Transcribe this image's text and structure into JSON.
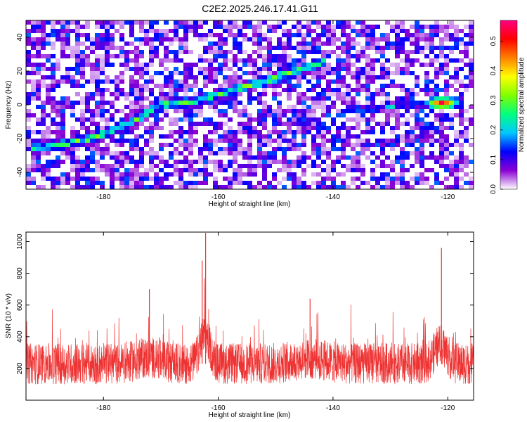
{
  "figure_title": "C2E2.2025.246.17.41.G11",
  "chart_data": [
    {
      "type": "heatmap",
      "xlabel": "Height of straight line (km)",
      "ylabel": "Frequency (Hz)",
      "xlim": [
        -193.5,
        -115.5
      ],
      "ylim": [
        -50,
        50
      ],
      "x_ticks": [
        -180,
        -160,
        -140,
        -120
      ],
      "y_ticks": [
        40,
        20,
        0,
        -20,
        -40
      ],
      "colorbar": {
        "label": "Normalized spectral amplitude",
        "range": [
          0,
          0.57
        ],
        "ticks": [
          "0.0",
          "0.1",
          "0.2",
          "0.3",
          "0.4",
          "0.5"
        ],
        "colormap": [
          "#ffffff",
          "#8a00d4",
          "#0000ff",
          "#00c8ff",
          "#00ff80",
          "#7fff00",
          "#ffff00",
          "#ff8000",
          "#ff0000",
          "#ff0080"
        ]
      },
      "features": [
        {
          "name": "linear chirp",
          "x": [
            -193,
            -188,
            -182,
            -176,
            -170,
            -164,
            -158,
            -152,
            -146,
            -141
          ],
          "y": [
            -26,
            -24,
            -20,
            -12,
            0,
            2,
            8,
            14,
            20,
            26
          ]
        },
        {
          "name": "steady tone",
          "x": [
            -138,
            -132,
            -126,
            -121,
            -117
          ],
          "y": [
            -3,
            -2,
            0,
            1,
            0
          ]
        },
        {
          "name": "peak",
          "x": -121,
          "y": 1,
          "amplitude": 0.57
        }
      ]
    },
    {
      "type": "line",
      "xlabel": "Height of straight line (km)",
      "ylabel": "SNR (10 * v/v)",
      "xlim": [
        -193.5,
        -115.5
      ],
      "ylim": [
        0,
        1060
      ],
      "x_ticks": [
        -180,
        -160,
        -140,
        -120
      ],
      "y_ticks": [
        200,
        400,
        600,
        800,
        1000
      ],
      "line_color": "#ee3333",
      "baseline_level": 230,
      "spikes": [
        {
          "x": -162.2,
          "value": 1055
        },
        {
          "x": -162.8,
          "value": 880
        },
        {
          "x": -121.1,
          "value": 960
        },
        {
          "x": -172,
          "value": 700
        },
        {
          "x": -144,
          "value": 640
        }
      ]
    }
  ]
}
